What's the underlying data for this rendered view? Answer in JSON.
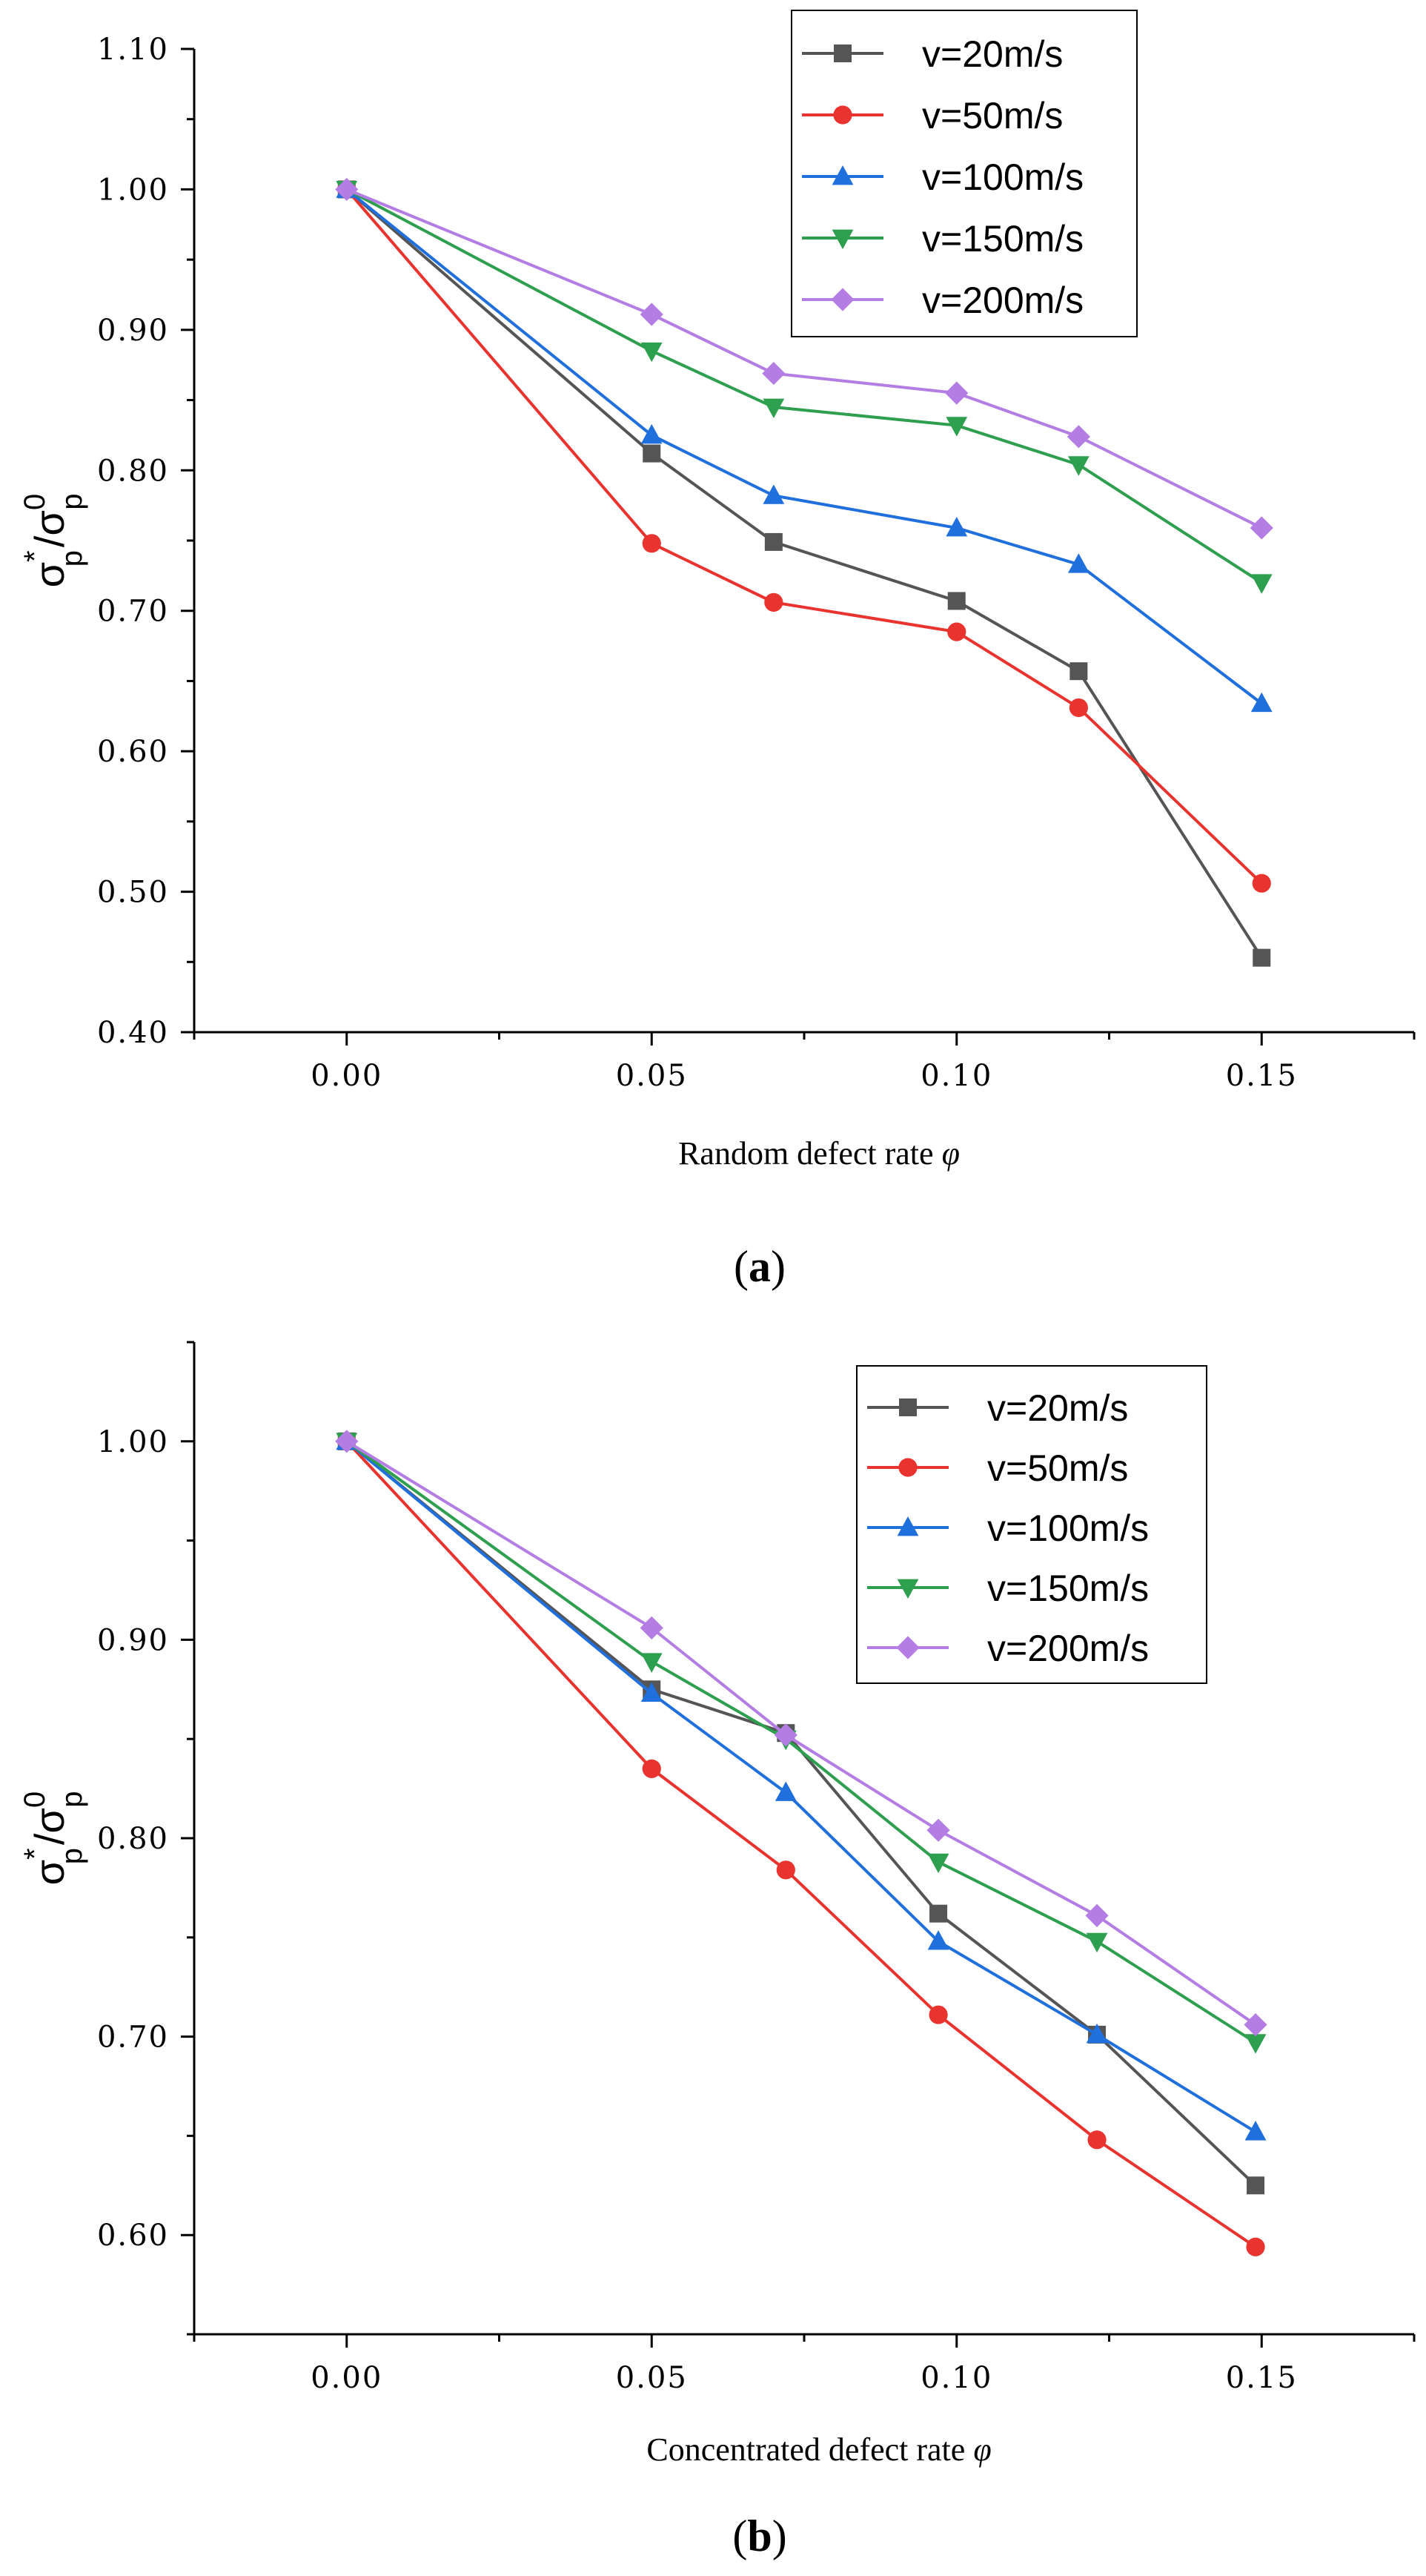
{
  "chart_data": [
    {
      "type": "line",
      "panel_label": "a",
      "xlabel": "Random defect rate φ",
      "ylabel": "σp*/σp0",
      "x_ticks": [
        "0.00",
        "0.05",
        "0.10",
        "0.15"
      ],
      "y_ticks": [
        "0.40",
        "0.50",
        "0.60",
        "0.70",
        "0.80",
        "0.90",
        "1.00",
        "1.10"
      ],
      "xlim": [
        -0.025,
        0.175
      ],
      "ylim": [
        0.4,
        1.1
      ],
      "legend_position": "top-right",
      "x": [
        0.0,
        0.05,
        0.07,
        0.1,
        0.12,
        0.15
      ],
      "series": [
        {
          "name": "v=20m/s",
          "color": "#555555",
          "marker": "square",
          "values": [
            1.0,
            0.812,
            0.749,
            0.707,
            0.657,
            0.453
          ]
        },
        {
          "name": "v=50m/s",
          "color": "#e8332e",
          "marker": "circle",
          "values": [
            1.0,
            0.748,
            0.706,
            0.685,
            0.631,
            0.506
          ]
        },
        {
          "name": "v=100m/s",
          "color": "#1f6fdc",
          "marker": "triangle-up",
          "values": [
            1.0,
            0.825,
            0.782,
            0.759,
            0.733,
            0.634
          ]
        },
        {
          "name": "v=150m/s",
          "color": "#2e9e4f",
          "marker": "triangle-down",
          "values": [
            1.0,
            0.885,
            0.845,
            0.832,
            0.804,
            0.72
          ]
        },
        {
          "name": "v=200m/s",
          "color": "#b37de3",
          "marker": "diamond",
          "values": [
            1.0,
            0.911,
            0.869,
            0.855,
            0.824,
            0.759
          ]
        }
      ]
    },
    {
      "type": "line",
      "panel_label": "b",
      "xlabel": "Concentrated defect rate φ",
      "ylabel": "σp*/σp0",
      "x_ticks": [
        "0.00",
        "0.05",
        "0.10",
        "0.15"
      ],
      "y_ticks": [
        "0.60",
        "0.70",
        "0.80",
        "0.90",
        "1.00"
      ],
      "xlim": [
        -0.025,
        0.175
      ],
      "ylim": [
        0.55,
        1.05
      ],
      "legend_position": "top-right",
      "x": [
        0.0,
        0.05,
        0.072,
        0.097,
        0.123,
        0.149
      ],
      "series": [
        {
          "name": "v=20m/s",
          "color": "#555555",
          "marker": "square",
          "values": [
            1.0,
            0.875,
            0.853,
            0.762,
            0.701,
            0.625
          ]
        },
        {
          "name": "v=50m/s",
          "color": "#e8332e",
          "marker": "circle",
          "values": [
            1.0,
            0.835,
            0.784,
            0.711,
            0.648,
            0.594
          ]
        },
        {
          "name": "v=100m/s",
          "color": "#1f6fdc",
          "marker": "triangle-up",
          "values": [
            1.0,
            0.873,
            0.823,
            0.748,
            0.701,
            0.652
          ]
        },
        {
          "name": "v=150m/s",
          "color": "#2e9e4f",
          "marker": "triangle-down",
          "values": [
            1.0,
            0.889,
            0.85,
            0.788,
            0.748,
            0.697
          ]
        },
        {
          "name": "v=200m/s",
          "color": "#b37de3",
          "marker": "diamond",
          "values": [
            1.0,
            0.906,
            0.852,
            0.804,
            0.761,
            0.706
          ]
        }
      ]
    }
  ]
}
